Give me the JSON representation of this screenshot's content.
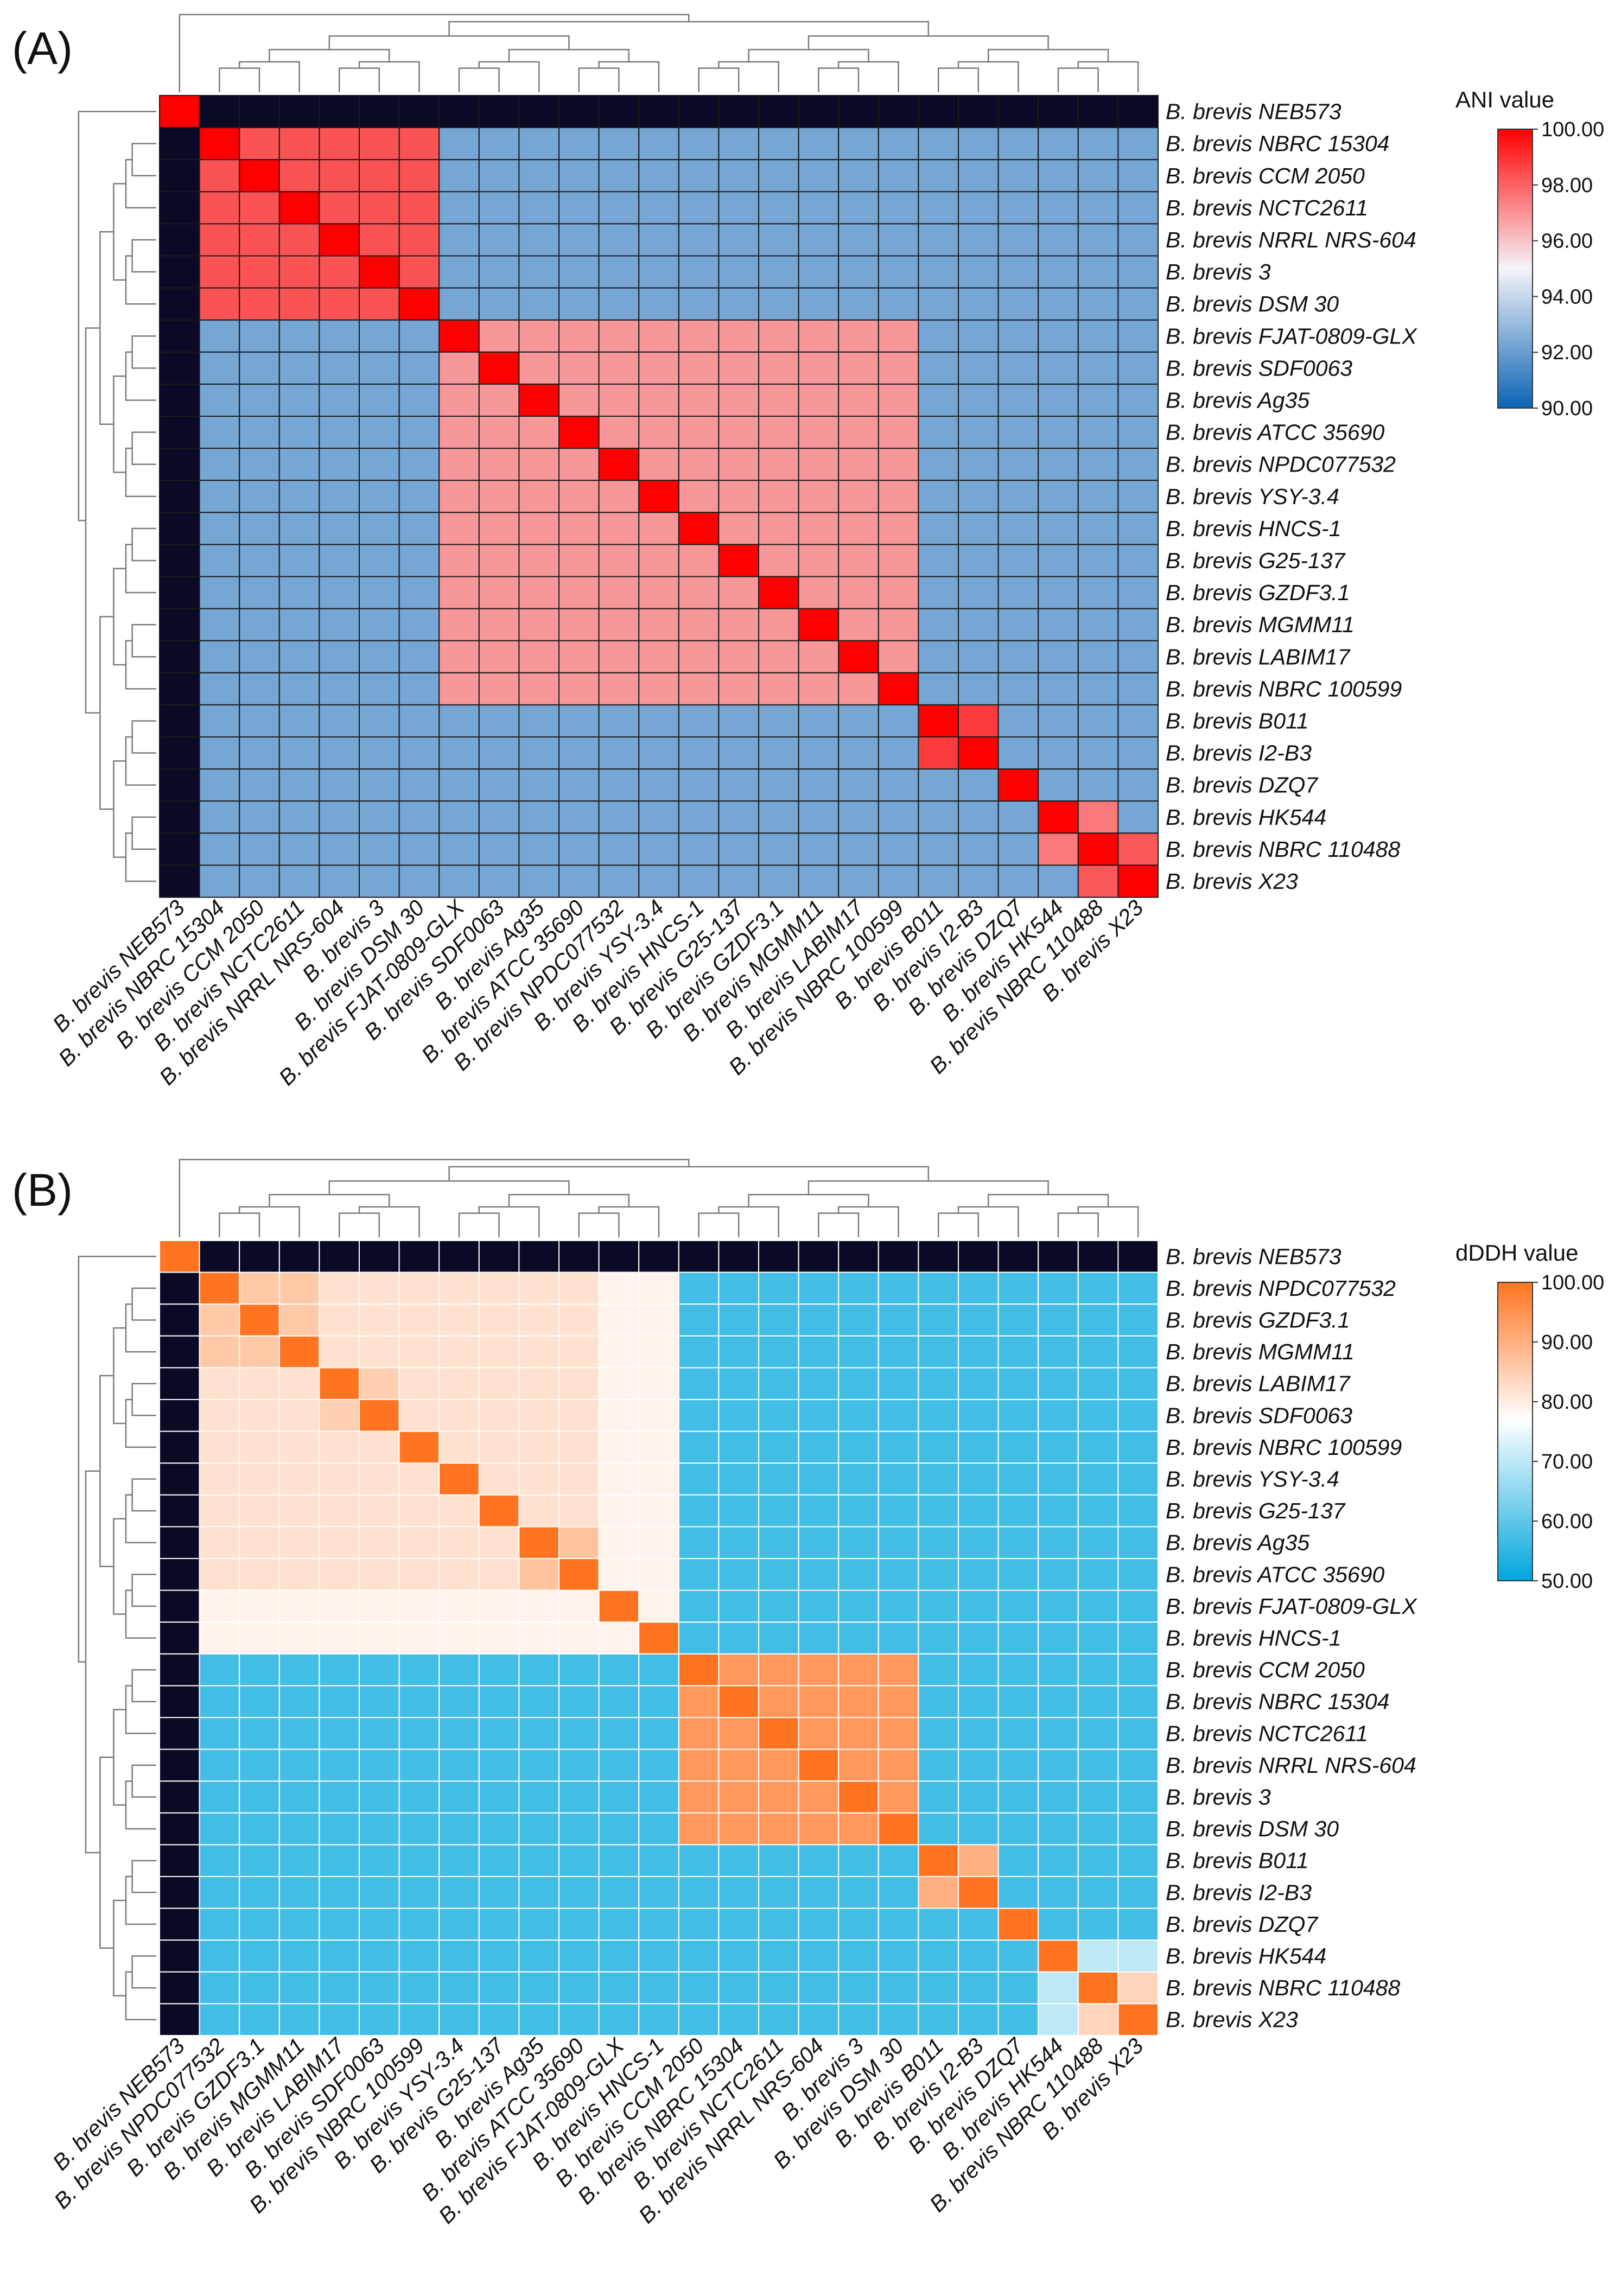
{
  "chart_data": [
    {
      "type": "heatmap",
      "panel_label": "(A)",
      "legend": {
        "title": "ANI value",
        "range": [
          90,
          100
        ],
        "ticks": [
          "100.00",
          "98.00",
          "96.00",
          "94.00",
          "92.00",
          "90.00"
        ],
        "colors": [
          "#0b63b5",
          "#f4f4f8",
          "#ff0000"
        ],
        "color_midpoint": 95
      },
      "row_labels": [
        "B. brevis NEB573",
        "B. brevis NBRC 15304",
        "B. brevis CCM 2050",
        "B. brevis NCTC2611",
        "B. brevis NRRL NRS-604",
        "B. brevis 3",
        "B. brevis DSM 30",
        "B. brevis FJAT-0809-GLX",
        "B. brevis SDF0063",
        "B. brevis Ag35",
        "B. brevis ATCC 35690",
        "B. brevis NPDC077532",
        "B. brevis YSY-3.4",
        "B. brevis HNCS-1",
        "B. brevis G25-137",
        "B. brevis GZDF3.1",
        "B. brevis MGMM11",
        "B. brevis LABIM17",
        "B. brevis NBRC 100599",
        "B. brevis B011",
        "B. brevis I2-B3",
        "B. brevis DZQ7",
        "B. brevis HK544",
        "B. brevis NBRC 110488",
        "B. brevis X23"
      ],
      "col_labels": [
        "B. brevis NEB573",
        "B. brevis NBRC 15304",
        "B. brevis CCM 2050",
        "B. brevis NCTC2611",
        "B. brevis NRRL NRS-604",
        "B. brevis 3",
        "B. brevis DSM 30",
        "B. brevis FJAT-0809-GLX",
        "B. brevis SDF0063",
        "B. brevis Ag35",
        "B. brevis ATCC 35690",
        "B. brevis NPDC077532",
        "B. brevis YSY-3.4",
        "B. brevis HNCS-1",
        "B. brevis G25-137",
        "B. brevis GZDF3.1",
        "B. brevis MGMM11",
        "B. brevis LABIM17",
        "B. brevis NBRC 100599",
        "B. brevis B011",
        "B. brevis I2-B3",
        "B. brevis DZQ7",
        "B. brevis HK544",
        "B. brevis NBRC 110488",
        "B. brevis X23"
      ],
      "off_group_value": 92.3,
      "outgroup_value": 75,
      "diagonal_value": 100,
      "groups": [
        {
          "members": [
            1,
            2,
            3,
            4
          ],
          "value": 99.6
        },
        {
          "members": [
            5,
            6
          ],
          "value": 99.4
        },
        {
          "members": [
            1,
            2,
            3,
            4,
            5,
            6
          ],
          "value": 98.3
        },
        {
          "members": [
            7,
            8,
            9,
            10,
            11,
            12,
            13,
            14,
            15,
            16,
            17,
            18
          ],
          "value": 96.9
        },
        {
          "members": [
            19,
            20
          ],
          "value": 98.8
        },
        {
          "members": [
            22,
            23
          ],
          "value": 97.5
        },
        {
          "members": [
            23,
            24
          ],
          "value": 98.2
        }
      ]
    },
    {
      "type": "heatmap",
      "panel_label": "(B)",
      "legend": {
        "title": "dDDH value",
        "range": [
          50,
          100
        ],
        "ticks": [
          "100.00",
          "90.00",
          "80.00",
          "70.00",
          "60.00",
          "50.00"
        ],
        "colors": [
          "#00a6dc",
          "#ffffff",
          "#ff7420"
        ],
        "color_midpoint": 77
      },
      "row_labels": [
        "B. brevis NEB573",
        "B. brevis NPDC077532",
        "B. brevis GZDF3.1",
        "B. brevis MGMM11",
        "B. brevis LABIM17",
        "B. brevis SDF0063",
        "B. brevis NBRC 100599",
        "B. brevis YSY-3.4",
        "B. brevis G25-137",
        "B. brevis Ag35",
        "B. brevis ATCC 35690",
        "B. brevis FJAT-0809-GLX",
        "B. brevis HNCS-1",
        "B. brevis CCM 2050",
        "B. brevis NBRC 15304",
        "B. brevis NCTC2611",
        "B. brevis NRRL NRS-604",
        "B. brevis 3",
        "B. brevis DSM 30",
        "B. brevis B011",
        "B. brevis I2-B3",
        "B. brevis DZQ7",
        "B. brevis HK544",
        "B. brevis NBRC 110488",
        "B. brevis X23"
      ],
      "col_labels": [
        "B. brevis NEB573",
        "B. brevis NPDC077532",
        "B. brevis GZDF3.1",
        "B. brevis MGMM11",
        "B. brevis LABIM17",
        "B. brevis SDF0063",
        "B. brevis NBRC 100599",
        "B. brevis YSY-3.4",
        "B. brevis G25-137",
        "B. brevis Ag35",
        "B. brevis ATCC 35690",
        "B. brevis FJAT-0809-GLX",
        "B. brevis HNCS-1",
        "B. brevis CCM 2050",
        "B. brevis NBRC 15304",
        "B. brevis NCTC2611",
        "B. brevis NRRL NRS-604",
        "B. brevis 3",
        "B. brevis DSM 30",
        "B. brevis B011",
        "B. brevis I2-B3",
        "B. brevis DZQ7",
        "B. brevis HK544",
        "B. brevis NBRC 110488",
        "B. brevis X23"
      ],
      "off_group_value": 57,
      "outgroup_value": 20,
      "diagonal_value": 100,
      "groups": [
        {
          "members": [
            1,
            2,
            3,
            4,
            5,
            6,
            7,
            8,
            9,
            10,
            11,
            12
          ],
          "value": 79
        },
        {
          "members": [
            1,
            2,
            3,
            4,
            5,
            6,
            7,
            8,
            9,
            10
          ],
          "value": 82
        },
        {
          "members": [
            1,
            2,
            3
          ],
          "value": 86
        },
        {
          "members": [
            4,
            5
          ],
          "value": 85
        },
        {
          "members": [
            9,
            10
          ],
          "value": 87
        },
        {
          "members": [
            13,
            14,
            15,
            16,
            17,
            18
          ],
          "value": 94
        },
        {
          "members": [
            19,
            20
          ],
          "value": 90
        },
        {
          "members": [
            22,
            23,
            24
          ],
          "value": 70
        },
        {
          "members": [
            23,
            24
          ],
          "value": 84
        }
      ]
    }
  ]
}
